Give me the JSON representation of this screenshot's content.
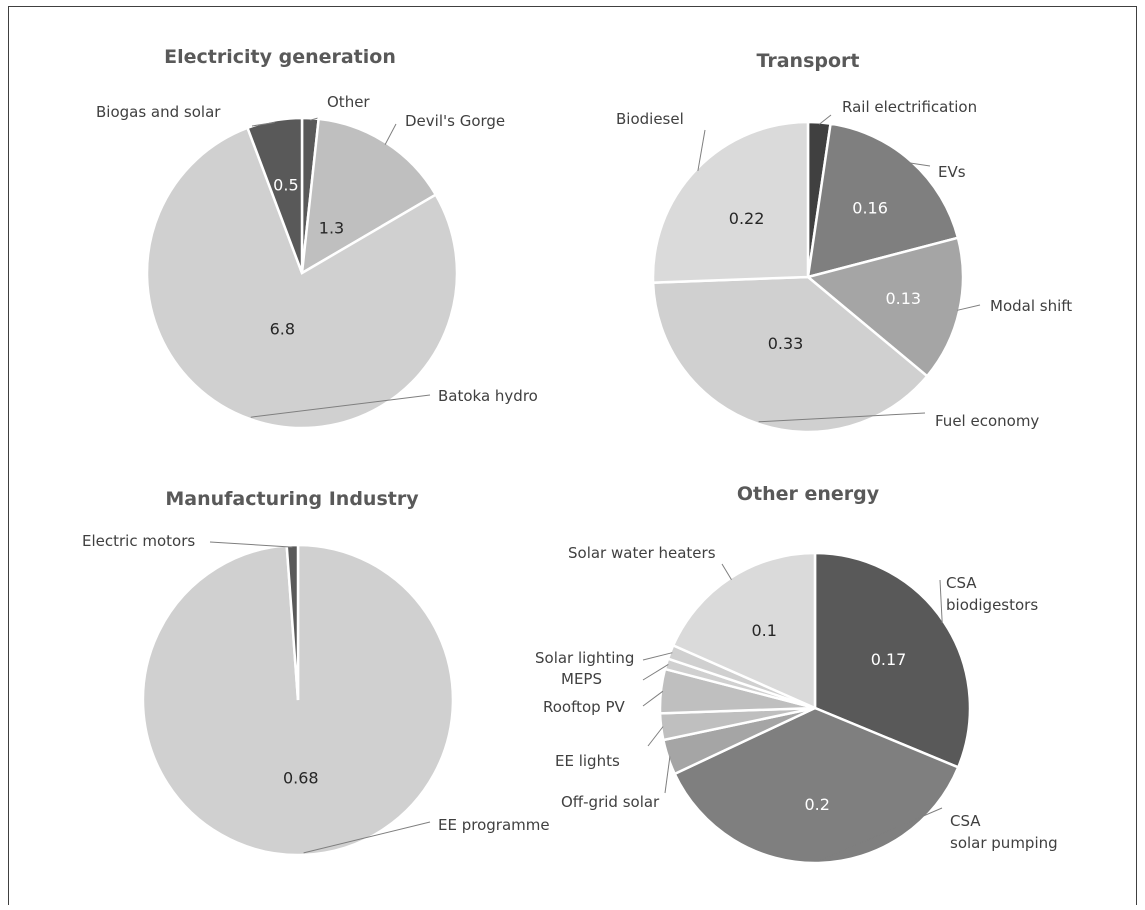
{
  "chart_data": [
    {
      "type": "pie",
      "title": "Electricity generation",
      "slices": [
        {
          "label": "Other",
          "value": 0.15,
          "value_label": "",
          "color": "#595959"
        },
        {
          "label": "Devil's Gorge",
          "value": 1.3,
          "value_label": "1.3",
          "color": "#bfbfbf"
        },
        {
          "label": "Batoka hydro",
          "value": 6.8,
          "value_label": "6.8",
          "color": "#d0d0d0"
        },
        {
          "label": "Biogas and solar",
          "value": 0.5,
          "value_label": "0.5",
          "color": "#595959"
        }
      ]
    },
    {
      "type": "pie",
      "title": "Transport",
      "slices": [
        {
          "label": "Rail electrification",
          "value": 0.02,
          "value_label": "",
          "color": "#404040"
        },
        {
          "label": "EVs",
          "value": 0.16,
          "value_label": "0.16",
          "color": "#7f7f7f"
        },
        {
          "label": "Modal shift",
          "value": 0.13,
          "value_label": "0.13",
          "color": "#a5a5a5"
        },
        {
          "label": "Fuel economy",
          "value": 0.33,
          "value_label": "0.33",
          "color": "#d0d0d0"
        },
        {
          "label": "Biodiesel",
          "value": 0.22,
          "value_label": "0.22",
          "color": "#dadada"
        }
      ]
    },
    {
      "type": "pie",
      "title": "Manufacturing Industry",
      "slices": [
        {
          "label": "EE programme",
          "value": 0.68,
          "value_label": "0.68",
          "color": "#d0d0d0"
        },
        {
          "label": "Electric motors",
          "value": 0.008,
          "value_label": "",
          "color": "#595959"
        }
      ]
    },
    {
      "type": "pie",
      "title": "Other energy",
      "slices": [
        {
          "label": "CSA\nbiodigestors",
          "value": 0.17,
          "value_label": "0.17",
          "color": "#595959"
        },
        {
          "label": "CSA\nsolar pumping",
          "value": 0.2,
          "value_label": "0.2",
          "color": "#7f7f7f"
        },
        {
          "label": "Off-grid solar",
          "value": 0.02,
          "value_label": "",
          "color": "#a5a5a5"
        },
        {
          "label": "EE lights",
          "value": 0.015,
          "value_label": "",
          "color": "#bfbfbf"
        },
        {
          "label": "Rooftop PV",
          "value": 0.025,
          "value_label": "",
          "color": "#bfbfbf"
        },
        {
          "label": "MEPS",
          "value": 0.006,
          "value_label": "",
          "color": "#d0d0d0"
        },
        {
          "label": "Solar lighting",
          "value": 0.008,
          "value_label": "",
          "color": "#d0d0d0"
        },
        {
          "label": "Solar water heaters",
          "value": 0.1,
          "value_label": "0.1",
          "color": "#dadada"
        }
      ]
    }
  ]
}
